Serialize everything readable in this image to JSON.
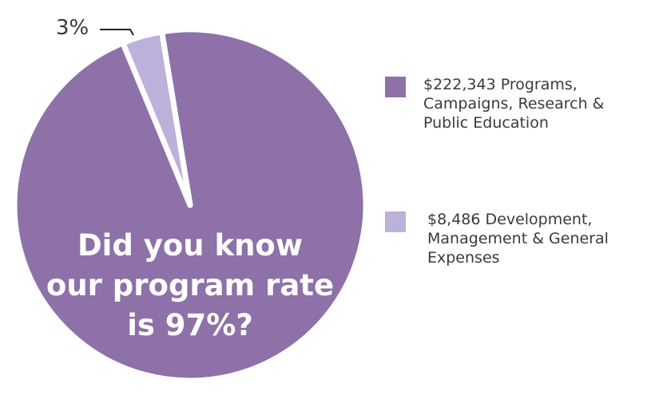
{
  "chart_data": {
    "type": "pie",
    "slices": [
      {
        "label": "$222,343 Programs, Campaigns, Research & Public Education",
        "value": 222343,
        "percent": 97,
        "color": "#8d71a8"
      },
      {
        "label": "$8,486 Development, Management & General Expenses",
        "value": 8486,
        "percent": 3,
        "color": "#bbb1da"
      }
    ],
    "data_labels": [
      {
        "slice": 1,
        "text": "3%"
      }
    ],
    "legend_placement": "right",
    "annotation": "Did you know\nour program rate\nis 97%?"
  }
}
